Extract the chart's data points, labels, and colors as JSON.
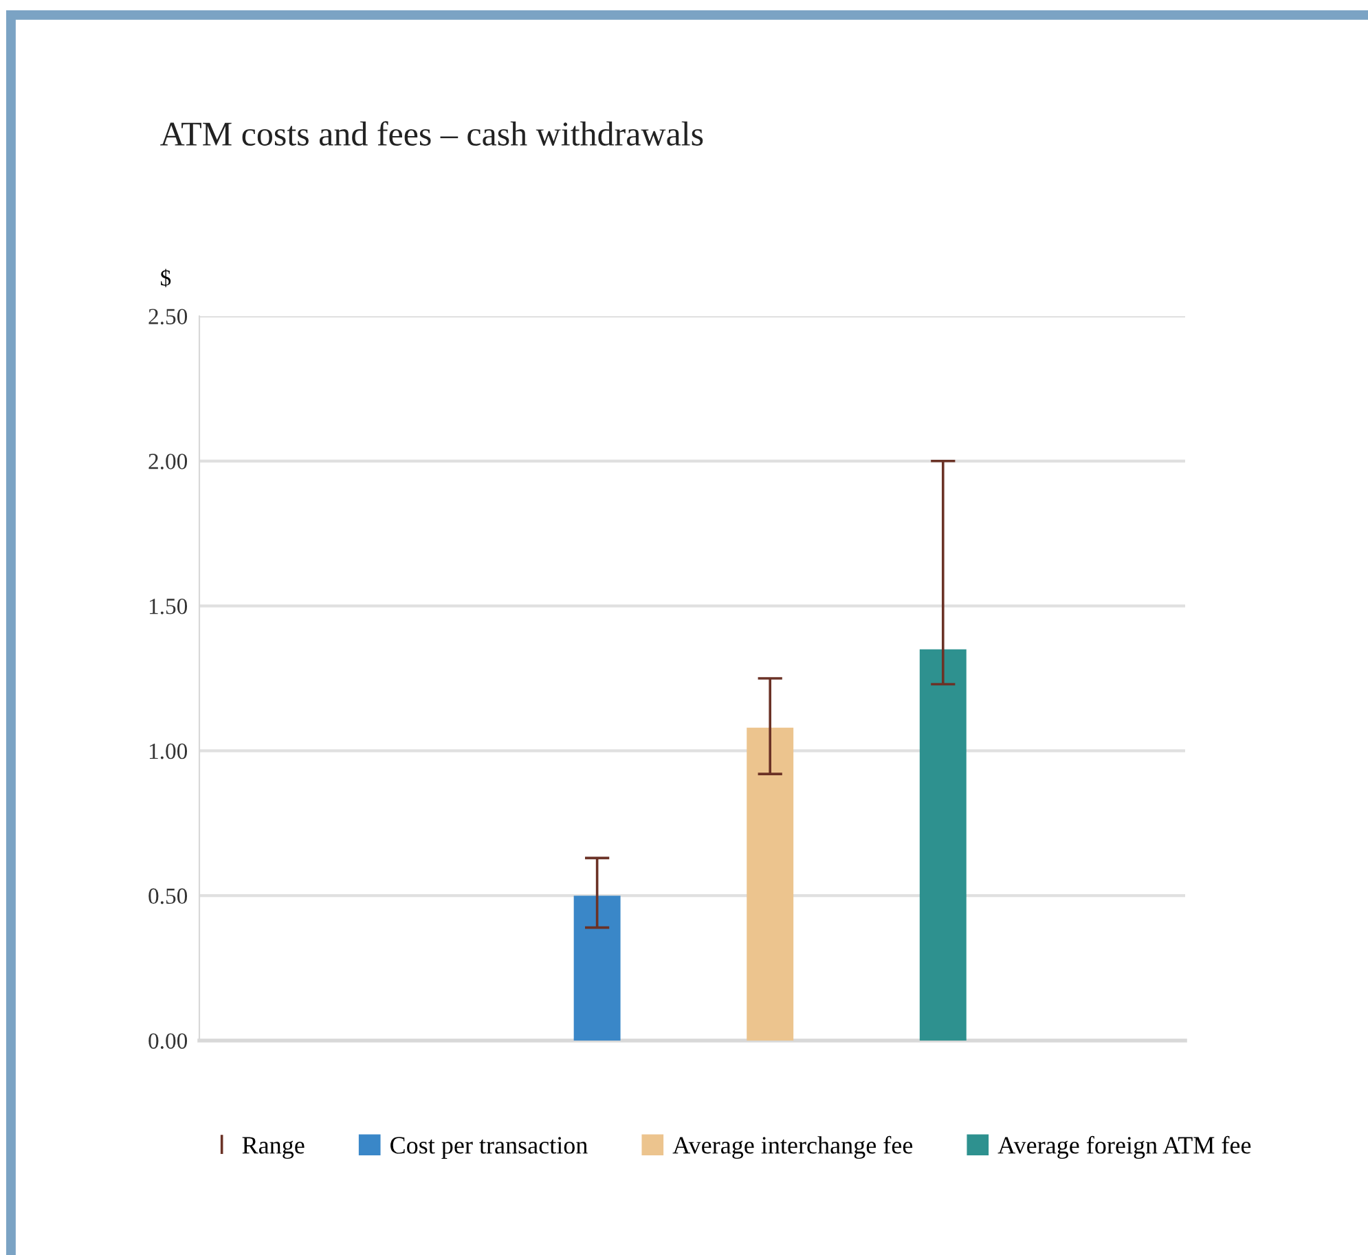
{
  "chart_data": {
    "type": "bar",
    "title": "ATM costs and fees – cash withdrawals",
    "ylabel": "$",
    "categories": [
      null
    ],
    "series": [
      {
        "name": "Cost per transaction",
        "color": "#3a87c8",
        "values": [
          0.5
        ],
        "errors": [
          [
            0.39,
            0.63
          ]
        ]
      },
      {
        "name": "Average interchange fee",
        "color": "#ecc48e",
        "values": [
          1.08
        ],
        "errors": [
          [
            0.92,
            1.25
          ]
        ]
      },
      {
        "name": "Average foreign ATM fee",
        "color": "#2e918f",
        "values": [
          1.35
        ],
        "errors": [
          [
            1.23,
            2.0
          ]
        ]
      }
    ],
    "annotations": [
      "Range"
    ],
    "ylim": [
      0,
      2.5
    ],
    "yticks": [
      {
        "value": 0,
        "label": "0.00"
      },
      {
        "value": 0.5,
        "label": "0.50"
      },
      {
        "value": 1,
        "label": "1.00"
      },
      {
        "value": 1.5,
        "label": "1.50"
      },
      {
        "value": 2,
        "label": "2.00"
      },
      {
        "value": 2.5,
        "label": "2.50"
      }
    ],
    "grid": "y",
    "legend": "bottom"
  }
}
